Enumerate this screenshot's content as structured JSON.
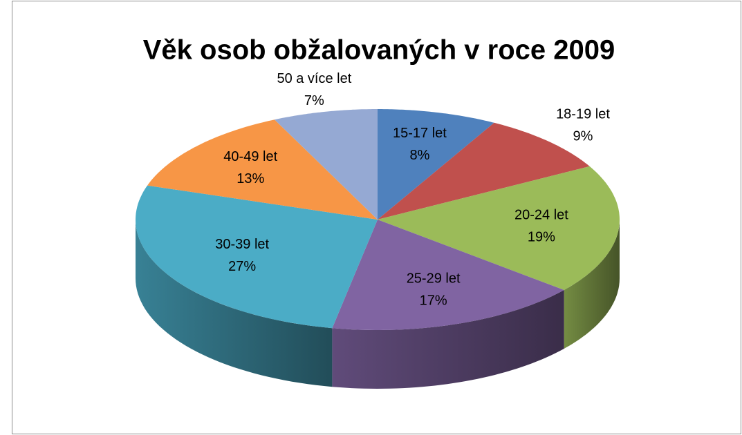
{
  "chart_data": {
    "type": "pie3d",
    "title": "Věk osob obžalovaných v roce 2009",
    "categories": [
      "15-17 let",
      "18-19 let",
      "20-24 let",
      "25-29 let",
      "30-39 let",
      "40-49 let",
      "50 a více let"
    ],
    "values": [
      8,
      9,
      19,
      17,
      27,
      13,
      7
    ],
    "value_labels": [
      "8%",
      "9%",
      "19%",
      "17%",
      "27%",
      "13%",
      "7%"
    ],
    "colors": [
      "#4f81bd",
      "#c0504d",
      "#9bbb59",
      "#8064a2",
      "#4bacc6",
      "#f79646",
      "#95a9d3"
    ]
  }
}
